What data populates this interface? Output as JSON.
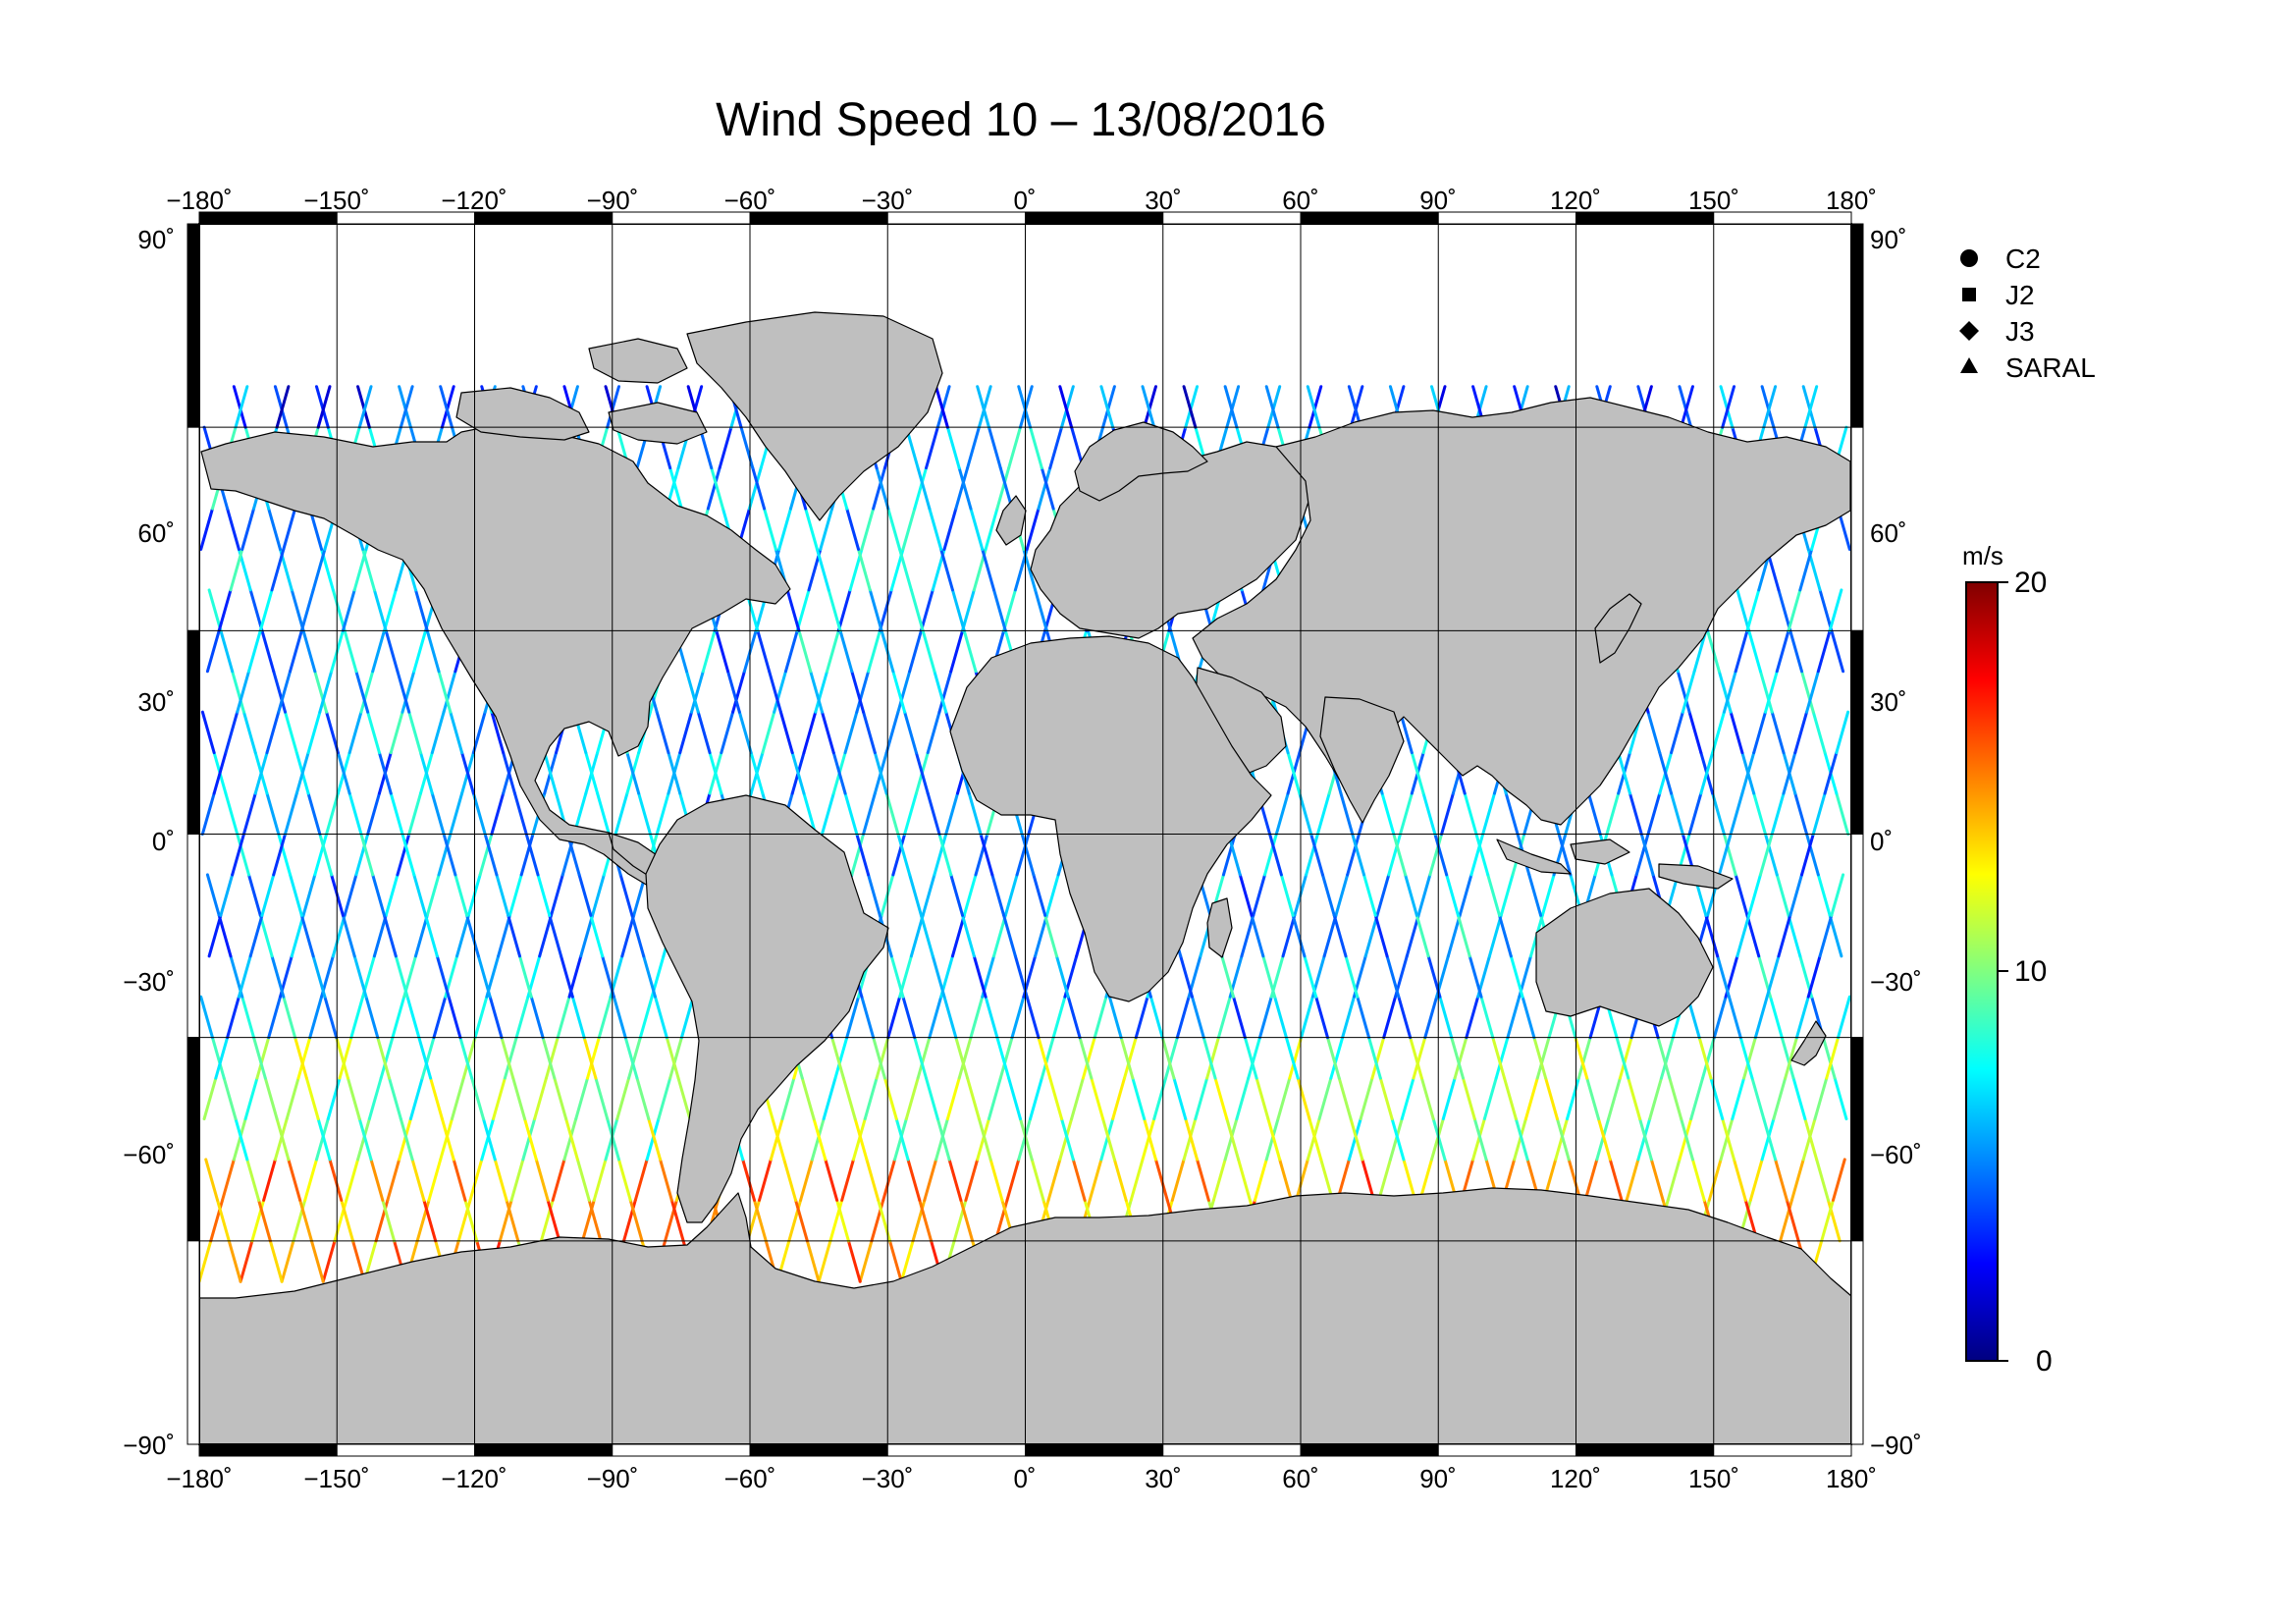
{
  "title": "Wind Speed 10 – 13/08/2016",
  "map": {
    "projection": "plate-carree",
    "lon_range": [
      -180,
      180
    ],
    "lat_range": [
      -90,
      90
    ],
    "grid_step": 30,
    "grid": true,
    "lon_ticks": [
      -180,
      -150,
      -120,
      -90,
      -60,
      -30,
      0,
      30,
      60,
      90,
      120,
      150,
      180
    ],
    "lat_ticks": [
      90,
      60,
      30,
      0,
      -30,
      -60,
      -90
    ],
    "lon_tick_labels": [
      "−180˚",
      "−150˚",
      "−120˚",
      "−90˚",
      "−60˚",
      "−30˚",
      "0˚",
      "30˚",
      "60˚",
      "90˚",
      "120˚",
      "150˚",
      "180˚"
    ],
    "lat_tick_labels": [
      "90˚",
      "60˚",
      "30˚",
      "0˚",
      "−30˚",
      "−60˚",
      "−90˚"
    ],
    "land_color": "#bfbfbf",
    "ocean_color": "#ffffff",
    "frame_color": "#000000"
  },
  "legend": {
    "placement": "top-right",
    "items": [
      {
        "label": "C2",
        "symbol": "circle"
      },
      {
        "label": "J2",
        "symbol": "square"
      },
      {
        "label": "J3",
        "symbol": "diamond"
      },
      {
        "label": "SARAL",
        "symbol": "triangle"
      }
    ]
  },
  "colorbar": {
    "unit": "m/s",
    "min": 0,
    "max": 20,
    "tick_values": [
      0,
      10,
      20
    ],
    "tick_labels": [
      "0",
      "10",
      "20"
    ],
    "colors": [
      "#000080",
      "#0000ff",
      "#0080ff",
      "#00ffff",
      "#80ff80",
      "#ffff00",
      "#ff8000",
      "#ff0000",
      "#800000"
    ]
  },
  "chart_data": {
    "type": "scatter",
    "title": "Wind Speed 10 – 13/08/2016",
    "xlabel": "",
    "ylabel": "",
    "xlim": [
      -180,
      180
    ],
    "ylim": [
      -90,
      90
    ],
    "color_variable": "wind speed (m/s)",
    "tracks_note": "satellite altimeter ground tracks over ocean, colored by wind speed",
    "zones": [
      {
        "lat_from": 60,
        "lat_to": 70,
        "speed_typical": 4
      },
      {
        "lat_from": -30,
        "lat_to": 60,
        "speed_typical": 6
      },
      {
        "lat_from": -45,
        "lat_to": -30,
        "speed_typical": 10
      },
      {
        "lat_from": -65,
        "lat_to": -45,
        "speed_typical": 14
      }
    ]
  }
}
